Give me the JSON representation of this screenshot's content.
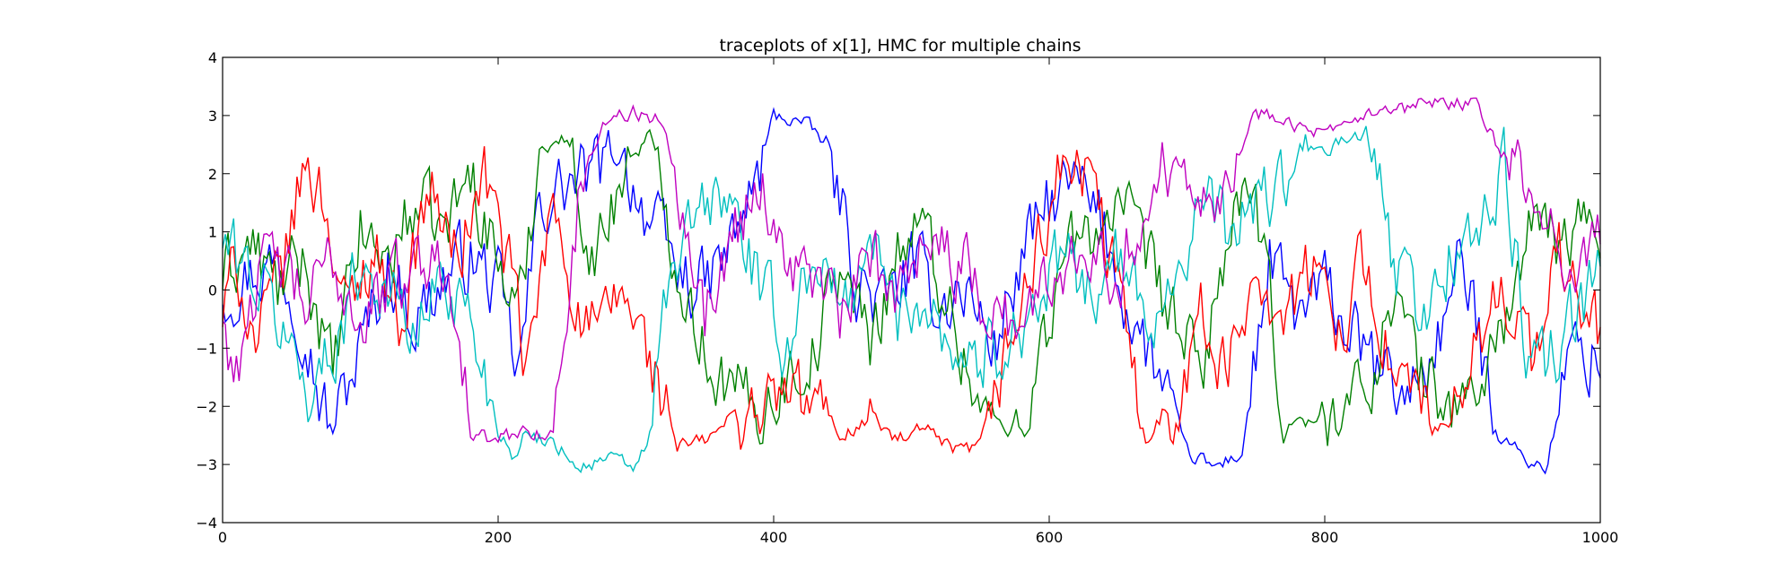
{
  "chart_data": {
    "type": "line",
    "title": "traceplots of x[1], HMC for multiple chains",
    "xlabel": "",
    "ylabel": "",
    "xlim": [
      0,
      1000
    ],
    "ylim": [
      -4,
      4
    ],
    "x_ticks": [
      "0",
      "200",
      "400",
      "600",
      "800",
      "1000"
    ],
    "y_ticks": [
      "4",
      "3",
      "2",
      "1",
      "0",
      "−1",
      "−2",
      "−3",
      "−4"
    ],
    "grid": false,
    "legend": "none",
    "series": [
      {
        "color": "#0000ff",
        "x": [
          0,
          20,
          40,
          60,
          70,
          80,
          100,
          120,
          140,
          160,
          180,
          200,
          215,
          230,
          250,
          270,
          290,
          310,
          330,
          350,
          370,
          390,
          400,
          420,
          440,
          460,
          480,
          500,
          520,
          540,
          560,
          580,
          600,
          620,
          640,
          660,
          680,
          700,
          720,
          740,
          760,
          780,
          800,
          820,
          840,
          860,
          880,
          900,
          920,
          940,
          960,
          980,
          1000
        ],
        "values": [
          0,
          0.3,
          0.5,
          -0.5,
          -1.8,
          -2.4,
          -1.0,
          0.4,
          -0.5,
          0.2,
          0.6,
          0.0,
          -1.5,
          1.5,
          1.8,
          2.0,
          2.3,
          1.2,
          0.3,
          0.0,
          0.8,
          2.0,
          3.0,
          2.9,
          2.5,
          0.2,
          -0.3,
          0.4,
          -0.2,
          0.0,
          -1.0,
          0.5,
          1.5,
          1.8,
          1.0,
          -0.5,
          -1.5,
          -2.8,
          -3.05,
          -2.8,
          0.5,
          -0.5,
          0.0,
          -0.8,
          -1.5,
          -1.8,
          -1.0,
          0.5,
          -1.8,
          -2.8,
          -3.1,
          -1.0,
          -1.2
        ]
      },
      {
        "color": "#008000",
        "x": [
          0,
          20,
          40,
          60,
          80,
          100,
          120,
          140,
          160,
          180,
          200,
          215,
          230,
          250,
          270,
          290,
          310,
          330,
          350,
          370,
          390,
          410,
          430,
          450,
          470,
          490,
          510,
          530,
          550,
          570,
          590,
          610,
          630,
          650,
          670,
          690,
          710,
          730,
          750,
          770,
          790,
          810,
          830,
          850,
          870,
          890,
          910,
          930,
          950,
          970,
          1000
        ],
        "values": [
          0.2,
          0.8,
          0.0,
          0.5,
          -1.5,
          1.0,
          0.5,
          1.5,
          1.0,
          2.0,
          0.5,
          -0.5,
          2.5,
          2.6,
          0.5,
          2.0,
          2.7,
          0.5,
          -1.0,
          -1.8,
          -2.0,
          -1.5,
          -1.0,
          0.5,
          -1.0,
          0.8,
          1.0,
          -0.5,
          -2.0,
          -2.5,
          -1.5,
          0.5,
          1.0,
          1.5,
          0.5,
          -0.5,
          -1.5,
          1.0,
          1.5,
          -2.2,
          -2.3,
          -2.0,
          -1.8,
          0.0,
          -1.5,
          -2.0,
          -1.8,
          -0.5,
          1.0,
          0.8,
          1.3
        ]
      },
      {
        "color": "#ff0000",
        "x": [
          0,
          10,
          25,
          45,
          60,
          75,
          90,
          110,
          130,
          150,
          170,
          190,
          210,
          220,
          240,
          260,
          275,
          290,
          310,
          330,
          350,
          370,
          390,
          410,
          430,
          450,
          470,
          490,
          510,
          530,
          550,
          570,
          590,
          610,
          630,
          650,
          670,
          690,
          710,
          730,
          750,
          770,
          790,
          810,
          830,
          850,
          870,
          890,
          910,
          930,
          950,
          970,
          1000
        ],
        "values": [
          -0.5,
          0.5,
          -1.0,
          0.5,
          2.2,
          1.5,
          -0.5,
          0.8,
          -0.5,
          1.8,
          0.5,
          2.0,
          0.2,
          -1.5,
          1.5,
          -0.5,
          -0.8,
          0.0,
          -1.2,
          -2.7,
          -2.6,
          -2.2,
          -2.0,
          -1.8,
          -2.0,
          -2.5,
          -2.2,
          -2.6,
          -2.4,
          -2.8,
          -2.7,
          -1.0,
          0.5,
          2.3,
          1.8,
          0.0,
          -2.5,
          -2.0,
          -0.5,
          -1.5,
          0.5,
          -0.5,
          0.3,
          -0.5,
          0.5,
          -1.5,
          -2.0,
          -2.5,
          -1.0,
          0.2,
          -1.2,
          0.5,
          -0.8
        ]
      },
      {
        "color": "#00bfbf",
        "x": [
          0,
          20,
          40,
          55,
          65,
          80,
          100,
          120,
          140,
          160,
          180,
          200,
          210,
          220,
          240,
          260,
          280,
          300,
          310,
          320,
          330,
          350,
          370,
          390,
          410,
          430,
          450,
          470,
          490,
          510,
          530,
          550,
          570,
          590,
          610,
          630,
          650,
          670,
          690,
          710,
          730,
          750,
          770,
          790,
          810,
          830,
          850,
          870,
          890,
          910,
          930,
          950,
          970,
          1000
        ],
        "values": [
          0.8,
          0.3,
          -0.5,
          -1.3,
          -1.8,
          -1.0,
          0.5,
          0.0,
          -0.8,
          0.3,
          -0.5,
          -2.4,
          -2.8,
          -2.5,
          -2.6,
          -3.05,
          -2.9,
          -3.05,
          -2.5,
          -0.5,
          0.5,
          1.5,
          1.5,
          0.0,
          -1.0,
          0.8,
          -0.5,
          1.0,
          -0.5,
          0.0,
          -1.0,
          -1.2,
          -0.8,
          -0.3,
          0.5,
          0.0,
          0.5,
          -0.5,
          0.2,
          1.5,
          1.0,
          1.5,
          1.8,
          2.3,
          2.5,
          2.7,
          0.5,
          -0.5,
          0.5,
          1.0,
          2.0,
          -1.5,
          -1.0,
          0.2
        ]
      },
      {
        "color": "#bf00bf",
        "x": [
          0,
          10,
          20,
          40,
          60,
          80,
          100,
          120,
          140,
          160,
          170,
          180,
          200,
          210,
          220,
          240,
          260,
          270,
          280,
          300,
          320,
          340,
          350,
          370,
          390,
          410,
          430,
          450,
          470,
          490,
          510,
          530,
          550,
          570,
          590,
          610,
          630,
          650,
          670,
          690,
          710,
          730,
          750,
          770,
          790,
          810,
          830,
          850,
          870,
          890,
          910,
          930,
          950,
          970,
          1000
        ],
        "values": [
          -0.5,
          -1.5,
          0.0,
          0.5,
          -0.3,
          0.5,
          -0.5,
          0.0,
          0.5,
          0.5,
          0.0,
          -2.5,
          -2.6,
          -2.5,
          -2.4,
          -2.5,
          1.8,
          2.5,
          3.0,
          3.05,
          2.9,
          1.0,
          -0.5,
          1.0,
          1.9,
          0.5,
          0.2,
          -0.5,
          0.5,
          0.0,
          1.2,
          0.5,
          0.0,
          -0.5,
          -0.3,
          0.5,
          1.0,
          0.2,
          1.5,
          2.3,
          2.0,
          1.8,
          3.05,
          3.0,
          2.7,
          2.7,
          3.0,
          3.0,
          3.2,
          3.2,
          3.2,
          2.3,
          1.5,
          0.5,
          1.0
        ]
      }
    ]
  }
}
